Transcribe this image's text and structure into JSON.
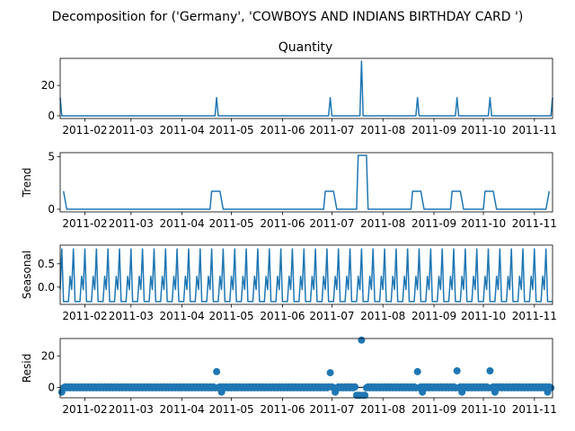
{
  "suptitle": "Decomposition for ('Germany', 'COWBOYS AND INDIANS BIRTHDAY CARD ')",
  "colors": {
    "series": "#1f77b4",
    "axis": "#000000"
  },
  "x_tick_labels": [
    "2011-02",
    "2011-03",
    "2011-04",
    "2011-05",
    "2011-06",
    "2011-07",
    "2011-08",
    "2011-09",
    "2011-10",
    "2011-11"
  ],
  "chart_data": [
    {
      "type": "line",
      "title": "Quantity",
      "ylabel": "",
      "xlim": [
        "2011-01-17",
        "2011-11-12"
      ],
      "ylim": [
        -1.8,
        37.8
      ],
      "yticks": [
        0,
        20
      ],
      "x": [
        "2011-01-17",
        "2011-01-18",
        "2011-04-21",
        "2011-04-22",
        "2011-04-23",
        "2011-06-29",
        "2011-06-30",
        "2011-07-01",
        "2011-07-18",
        "2011-07-19",
        "2011-07-20",
        "2011-08-21",
        "2011-08-22",
        "2011-08-23",
        "2011-09-14",
        "2011-09-15",
        "2011-09-16",
        "2011-10-04",
        "2011-10-05",
        "2011-10-06",
        "2011-11-11",
        "2011-11-12"
      ],
      "y": [
        12,
        0,
        0,
        12,
        0,
        0,
        12,
        0,
        0,
        36,
        0,
        0,
        12,
        0,
        0,
        12,
        0,
        0,
        12,
        0,
        0,
        12
      ]
    },
    {
      "type": "line",
      "title": "",
      "ylabel": "Trend",
      "xlim": [
        "2011-01-17",
        "2011-11-12"
      ],
      "ylim": [
        -0.26,
        5.4
      ],
      "yticks": [
        0,
        5
      ],
      "x": [
        "2011-01-19",
        "2011-01-21",
        "2011-04-18",
        "2011-04-19",
        "2011-04-24",
        "2011-04-26",
        "2011-06-26",
        "2011-06-27",
        "2011-07-02",
        "2011-07-04",
        "2011-07-16",
        "2011-07-17",
        "2011-07-22",
        "2011-07-23",
        "2011-08-18",
        "2011-08-19",
        "2011-08-24",
        "2011-08-26",
        "2011-09-11",
        "2011-09-12",
        "2011-09-17",
        "2011-09-19",
        "2011-10-01",
        "2011-10-02",
        "2011-10-07",
        "2011-10-09",
        "2011-11-08",
        "2011-11-10"
      ],
      "y": [
        1.71,
        0,
        0,
        1.71,
        1.71,
        0,
        0,
        1.71,
        1.71,
        0,
        0,
        5.14,
        5.14,
        0,
        0,
        1.71,
        1.71,
        0,
        0,
        1.71,
        1.71,
        0,
        0,
        1.71,
        1.71,
        0,
        0,
        1.71
      ]
    },
    {
      "type": "line",
      "title": "",
      "ylabel": "Seasonal",
      "period_days": 7,
      "pattern": [
        0.82,
        -0.31,
        -0.31,
        -0.31,
        -0.31,
        0.23,
        -0.05
      ],
      "pattern_start": "2011-01-18",
      "xlim": [
        "2011-01-17",
        "2011-11-12"
      ],
      "ylim": [
        -0.37,
        0.9
      ],
      "yticks": [
        0.0,
        0.5
      ]
    },
    {
      "type": "scatter",
      "title": "",
      "ylabel": "Resid",
      "baseline": 0,
      "base_points_per_day": 1,
      "near_zero_residual": 0.3,
      "xlim": [
        "2011-01-17",
        "2011-11-12"
      ],
      "ylim": [
        -6.6,
        31
      ],
      "yticks": [
        0,
        20
      ],
      "outliers": [
        {
          "x": "2011-01-18",
          "y": -3
        },
        {
          "x": "2011-04-22",
          "y": 10
        },
        {
          "x": "2011-04-25",
          "y": -3
        },
        {
          "x": "2011-06-30",
          "y": 9.3
        },
        {
          "x": "2011-07-03",
          "y": -3
        },
        {
          "x": "2011-07-16",
          "y": -5
        },
        {
          "x": "2011-07-17",
          "y": -5
        },
        {
          "x": "2011-07-18",
          "y": -5
        },
        {
          "x": "2011-07-19",
          "y": 30
        },
        {
          "x": "2011-07-20",
          "y": -5
        },
        {
          "x": "2011-07-21",
          "y": -5
        },
        {
          "x": "2011-08-22",
          "y": 10
        },
        {
          "x": "2011-08-25",
          "y": -3
        },
        {
          "x": "2011-09-15",
          "y": 10.5
        },
        {
          "x": "2011-09-18",
          "y": -3
        },
        {
          "x": "2011-10-05",
          "y": 10.5
        },
        {
          "x": "2011-10-08",
          "y": -3
        },
        {
          "x": "2011-11-09",
          "y": -3
        }
      ]
    }
  ]
}
